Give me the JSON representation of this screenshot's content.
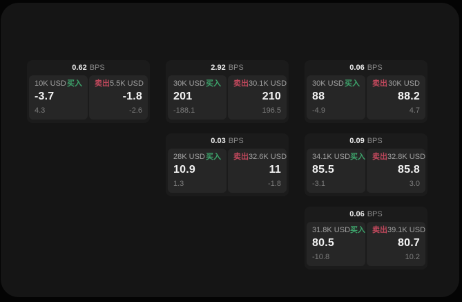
{
  "colors": {
    "buy_green": "#3da36b",
    "sell_red": "#c0485c",
    "surface_bg": "#151515",
    "card_bg": "#1b1b1b",
    "panel_bg": "#262626"
  },
  "labels": {
    "bps": "BPS",
    "buy": "买入",
    "sell": "卖出"
  },
  "cards": [
    {
      "row": 1,
      "col": 1,
      "spread": "0.62",
      "buy": {
        "size": "10K USD",
        "price": "-3.7",
        "sub": "4.3"
      },
      "sell": {
        "size": "5.5K USD",
        "price": "-1.8",
        "sub": "-2.6"
      }
    },
    {
      "row": 1,
      "col": 2,
      "spread": "2.92",
      "buy": {
        "size": "30K USD",
        "price": "201",
        "sub": "-188.1"
      },
      "sell": {
        "size": "30.1K USD",
        "price": "210",
        "sub": "196.5"
      }
    },
    {
      "row": 1,
      "col": 3,
      "spread": "0.06",
      "buy": {
        "size": "30K USD",
        "price": "88",
        "sub": "-4.9"
      },
      "sell": {
        "size": "30K USD",
        "price": "88.2",
        "sub": "4.7"
      }
    },
    {
      "row": 2,
      "col": 2,
      "spread": "0.03",
      "buy": {
        "size": "28K USD",
        "price": "10.9",
        "sub": "1.3"
      },
      "sell": {
        "size": "32.6K USD",
        "price": "11",
        "sub": "-1.8"
      }
    },
    {
      "row": 2,
      "col": 3,
      "spread": "0.09",
      "buy": {
        "size": "34.1K USD",
        "price": "85.5",
        "sub": "-3.1"
      },
      "sell": {
        "size": "32.8K USD",
        "price": "85.8",
        "sub": "3.0"
      }
    },
    {
      "row": 3,
      "col": 3,
      "spread": "0.06",
      "buy": {
        "size": "31.8K USD",
        "price": "80.5",
        "sub": "-10.8"
      },
      "sell": {
        "size": "39.1K USD",
        "price": "80.7",
        "sub": "10.2"
      }
    }
  ]
}
